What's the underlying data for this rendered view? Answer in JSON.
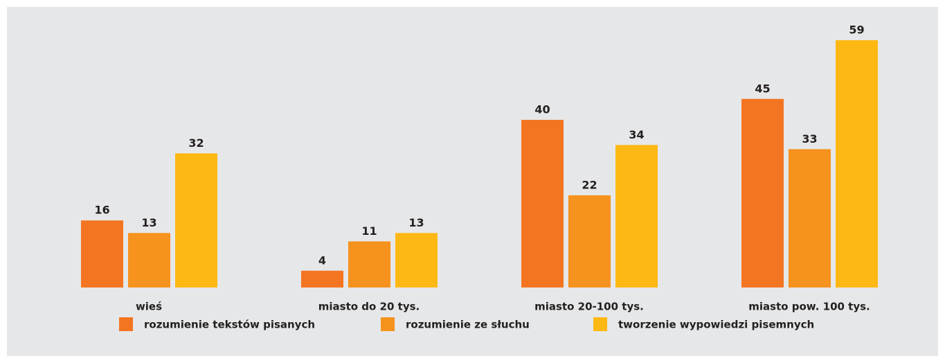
{
  "chart_data": {
    "type": "bar",
    "categories": [
      "wieś",
      "miasto do 20 tys.",
      "miasto 20-100 tys.",
      "miasto pow. 100 tys."
    ],
    "series": [
      {
        "name": "rozumienie tekstów pisanych",
        "color": "#f47521",
        "values": [
          16,
          4,
          40,
          45
        ]
      },
      {
        "name": "rozumienie ze słuchu",
        "color": "#f6921e",
        "values": [
          13,
          11,
          22,
          33
        ]
      },
      {
        "name": "tworzenie wypowiedzi pisemnych",
        "color": "#fdb813",
        "values": [
          32,
          13,
          34,
          59
        ]
      }
    ]
  }
}
